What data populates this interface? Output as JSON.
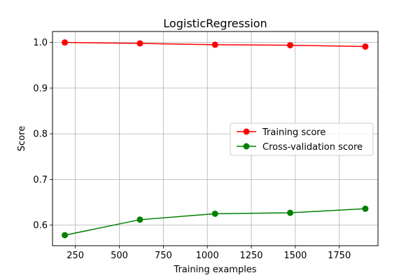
{
  "chart_data": {
    "type": "line",
    "title": "LogisticRegression",
    "xlabel": "Training examples",
    "ylabel": "Score",
    "xlim": [
      120,
      1970
    ],
    "ylim": [
      0.555,
      1.024
    ],
    "x_ticks": [
      250,
      500,
      750,
      1000,
      1250,
      1500,
      1750
    ],
    "x_tick_labels": [
      "250",
      "500",
      "750",
      "1000",
      "1250",
      "1500",
      "1750"
    ],
    "y_ticks": [
      0.6,
      0.7,
      0.8,
      0.9,
      1.0
    ],
    "y_tick_labels": [
      "0.6",
      "0.7",
      "0.8",
      "0.9",
      "1.0"
    ],
    "grid": true,
    "legend_position": "center-right",
    "x": [
      190,
      617,
      1044,
      1471,
      1898
    ],
    "series": [
      {
        "name": "Training score",
        "color": "#ff0000",
        "marker": "circle",
        "values": [
          1.0,
          0.998,
          0.995,
          0.994,
          0.991
        ]
      },
      {
        "name": "Cross-validation score",
        "color": "#008000",
        "marker": "circle",
        "values": [
          0.578,
          0.612,
          0.625,
          0.627,
          0.636
        ]
      }
    ]
  }
}
